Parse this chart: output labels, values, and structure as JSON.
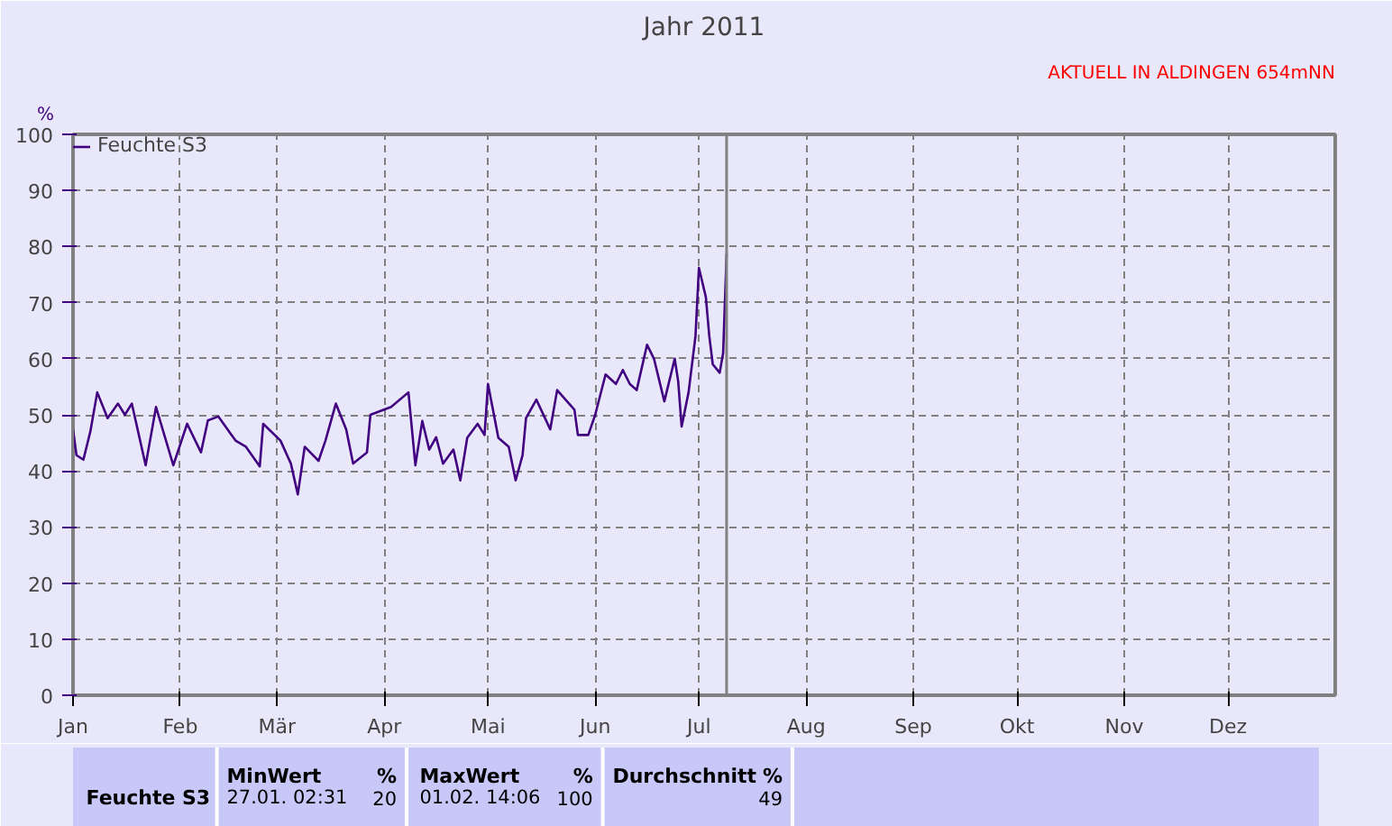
{
  "chart_data": {
    "type": "line",
    "title": "Jahr 2011",
    "ylabel": "%",
    "annotations": [
      "AKTUELL IN ALDINGEN 654mNN",
      "Feuchte S3",
      "MinWert",
      "%",
      "27.01.  02:31",
      "20",
      "MaxWert",
      "%",
      "01.02.  14:06",
      "100",
      "Durchschnitt",
      "%",
      "49"
    ],
    "x": [
      "2011-01-01",
      "2011-01-02",
      "2011-01-04",
      "2011-01-06",
      "2011-01-08",
      "2011-01-11",
      "2011-01-14",
      "2011-01-16",
      "2011-01-18",
      "2011-01-22",
      "2011-01-25",
      "2011-01-30",
      "2011-02-03",
      "2011-02-07",
      "2011-02-09",
      "2011-02-12",
      "2011-02-17",
      "2011-02-20",
      "2011-02-24",
      "2011-02-25",
      "2011-03-02",
      "2011-03-05",
      "2011-03-07",
      "2011-03-09",
      "2011-03-13",
      "2011-03-15",
      "2011-03-18",
      "2011-03-21",
      "2011-03-23",
      "2011-03-27",
      "2011-03-28",
      "2011-04-03",
      "2011-04-08",
      "2011-04-10",
      "2011-04-12",
      "2011-04-14",
      "2011-04-16",
      "2011-04-18",
      "2011-04-21",
      "2011-04-23",
      "2011-04-25",
      "2011-04-28",
      "2011-04-30",
      "2011-05-01",
      "2011-05-04",
      "2011-05-07",
      "2011-05-09",
      "2011-05-11",
      "2011-05-12",
      "2011-05-15",
      "2011-05-19",
      "2011-05-21",
      "2011-05-26",
      "2011-05-27",
      "2011-05-30",
      "2011-06-01",
      "2011-06-04",
      "2011-06-07",
      "2011-06-09",
      "2011-06-11",
      "2011-06-13",
      "2011-06-16",
      "2011-06-18",
      "2011-06-21",
      "2011-06-24",
      "2011-06-25",
      "2011-06-26",
      "2011-06-28",
      "2011-06-30",
      "2011-07-01",
      "2011-07-03",
      "2011-07-04",
      "2011-07-05",
      "2011-07-07",
      "2011-07-08",
      "2011-07-09"
    ],
    "series": [
      {
        "name": "Feuchte S3",
        "color": "#400080",
        "values": [
          47.4,
          42.8,
          42,
          47,
          54,
          49.4,
          52,
          50,
          52,
          41,
          51.4,
          41,
          48.4,
          43.3,
          49,
          49.7,
          45.4,
          44.3,
          40.8,
          48.4,
          45.4,
          41.3,
          35.8,
          44.3,
          41.8,
          45.4,
          52,
          47.4,
          41.3,
          43.3,
          50,
          51.4,
          54,
          41,
          48.9,
          43.8,
          46,
          41.3,
          43.8,
          38.3,
          45.9,
          48.4,
          46.4,
          55.5,
          45.9,
          44.3,
          38.3,
          42.8,
          49.4,
          52.7,
          47.4,
          54.4,
          50.9,
          46.4,
          46.4,
          50,
          57.2,
          55.5,
          58,
          55.5,
          54.4,
          62.5,
          60,
          52.4,
          60,
          56,
          47.9,
          54,
          64,
          76.2,
          71,
          64,
          59,
          57.5,
          61,
          78.7
        ]
      }
    ],
    "xlim": [
      "2011-01-01",
      "2012-01-01"
    ],
    "xticks": [
      {
        "value": "2011-01-01",
        "label": "Jan"
      },
      {
        "value": "2011-02-01",
        "label": "Feb"
      },
      {
        "value": "2011-03-01",
        "label": "Mär"
      },
      {
        "value": "2011-04-01",
        "label": "Apr"
      },
      {
        "value": "2011-05-01",
        "label": "Mai"
      },
      {
        "value": "2011-06-01",
        "label": "Jun"
      },
      {
        "value": "2011-07-01",
        "label": "Jul"
      },
      {
        "value": "2011-08-01",
        "label": "Aug"
      },
      {
        "value": "2011-09-01",
        "label": "Sep"
      },
      {
        "value": "2011-10-01",
        "label": "Okt"
      },
      {
        "value": "2011-11-01",
        "label": "Nov"
      },
      {
        "value": "2011-12-01",
        "label": "Dez"
      }
    ],
    "ylim": [
      0,
      100
    ],
    "yticks": [
      0,
      10,
      20,
      30,
      40,
      50,
      60,
      70,
      80,
      90,
      100
    ],
    "ref_lines": [
      {
        "axis": "x",
        "value": "2011-07-09",
        "label": null,
        "color": "#808080"
      }
    ],
    "grid": true,
    "legend": "top left",
    "line_style": "solid",
    "marker": "none"
  }
}
